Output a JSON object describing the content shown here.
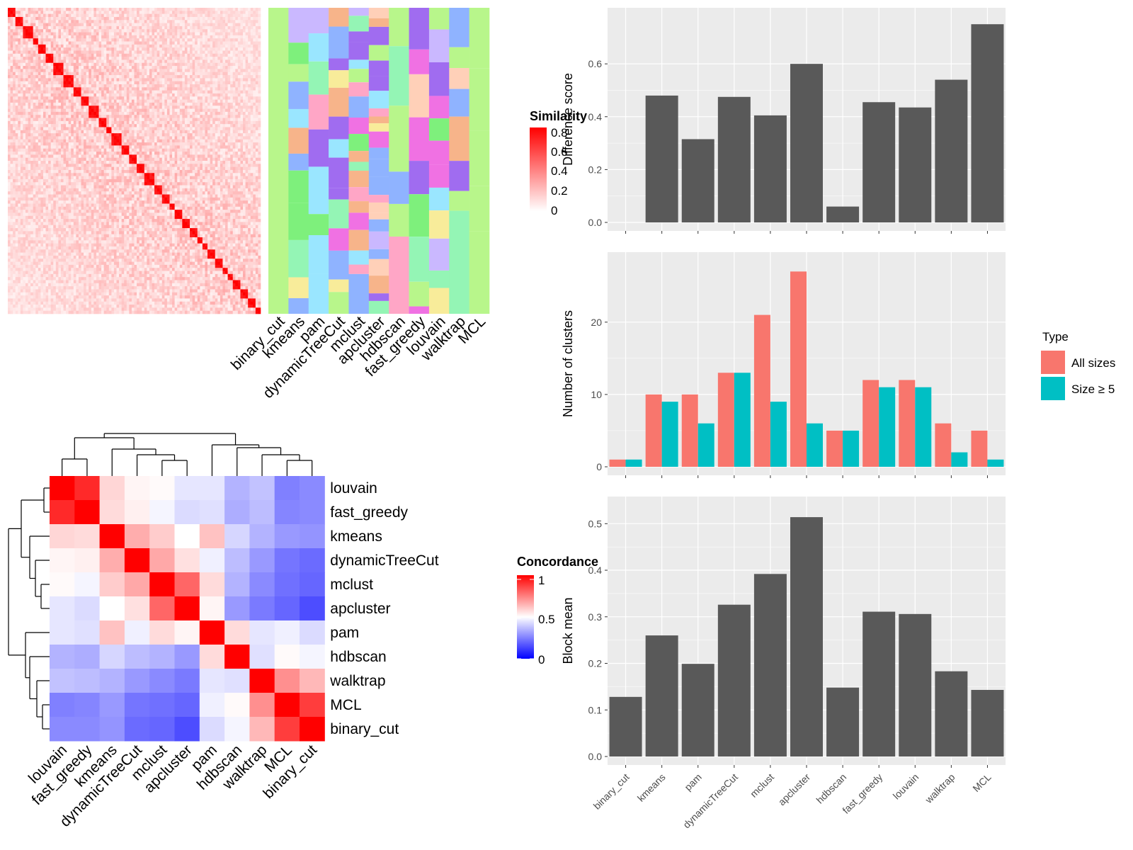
{
  "colors": {
    "bar": "#595959",
    "panel_bg": "#ebebeb",
    "all_sizes": "#f8766d",
    "size_ge_5": "#00bfc4",
    "heat_high": "#ff0000",
    "heat_mid": "#ffffff",
    "heat_low": "#0000ff"
  },
  "chart_data": [
    {
      "id": "difference-score",
      "type": "bar",
      "categories": [
        "binary_cut",
        "kmeans",
        "pam",
        "dynamicTreeCut",
        "mclust",
        "apcluster",
        "hdbscan",
        "fast_greedy",
        "louvain",
        "walktrap",
        "MCL"
      ],
      "values": [
        0.0,
        0.48,
        0.315,
        0.475,
        0.405,
        0.6,
        0.06,
        0.455,
        0.435,
        0.54,
        0.75
      ],
      "ylabel": "Difference score",
      "yticks": [
        "0.0",
        "0.2",
        "0.4",
        "0.6"
      ],
      "ylim": [
        0,
        0.78
      ]
    },
    {
      "id": "number-of-clusters",
      "type": "bar",
      "categories": [
        "binary_cut",
        "kmeans",
        "pam",
        "dynamicTreeCut",
        "mclust",
        "apcluster",
        "hdbscan",
        "fast_greedy",
        "louvain",
        "walktrap",
        "MCL"
      ],
      "series": [
        {
          "name": "All sizes",
          "values": [
            1,
            10,
            10,
            13,
            21,
            27,
            5,
            12,
            12,
            6,
            5
          ]
        },
        {
          "name": "Size ≥ 5",
          "values": [
            1,
            9,
            6,
            13,
            9,
            6,
            5,
            11,
            11,
            2,
            1
          ]
        }
      ],
      "ylabel": "Number of clusters",
      "yticks": [
        "0",
        "10",
        "20"
      ],
      "ylim": [
        0,
        28.5
      ],
      "legend": {
        "title": "Type",
        "position": "right"
      }
    },
    {
      "id": "block-mean",
      "type": "bar",
      "categories": [
        "binary_cut",
        "kmeans",
        "pam",
        "dynamicTreeCut",
        "mclust",
        "apcluster",
        "hdbscan",
        "fast_greedy",
        "louvain",
        "walktrap",
        "MCL"
      ],
      "values": [
        0.128,
        0.26,
        0.199,
        0.326,
        0.392,
        0.514,
        0.148,
        0.311,
        0.306,
        0.183,
        0.143
      ],
      "ylabel": "Block mean",
      "yticks": [
        "0.0",
        "0.1",
        "0.2",
        "0.3",
        "0.4",
        "0.5"
      ],
      "ylim": [
        0,
        0.54
      ]
    },
    {
      "id": "concordance-heatmap",
      "type": "heatmap",
      "labels": [
        "louvain",
        "fast_greedy",
        "kmeans",
        "dynamicTreeCut",
        "mclust",
        "apcluster",
        "pam",
        "hdbscan",
        "walktrap",
        "MCL",
        "binary_cut"
      ],
      "values": [
        [
          1.0,
          0.92,
          0.58,
          0.52,
          0.51,
          0.45,
          0.45,
          0.35,
          0.38,
          0.25,
          0.27
        ],
        [
          0.92,
          1.0,
          0.57,
          0.53,
          0.48,
          0.43,
          0.44,
          0.34,
          0.37,
          0.26,
          0.27
        ],
        [
          0.58,
          0.57,
          1.0,
          0.66,
          0.6,
          0.5,
          0.62,
          0.42,
          0.35,
          0.3,
          0.29
        ],
        [
          0.52,
          0.53,
          0.66,
          1.0,
          0.67,
          0.56,
          0.47,
          0.37,
          0.3,
          0.23,
          0.21
        ],
        [
          0.51,
          0.48,
          0.6,
          0.67,
          1.0,
          0.8,
          0.57,
          0.35,
          0.27,
          0.22,
          0.2
        ],
        [
          0.45,
          0.43,
          0.5,
          0.56,
          0.8,
          1.0,
          0.52,
          0.3,
          0.24,
          0.2,
          0.15
        ],
        [
          0.45,
          0.44,
          0.62,
          0.47,
          0.57,
          0.52,
          1.0,
          0.57,
          0.45,
          0.47,
          0.43
        ],
        [
          0.35,
          0.34,
          0.42,
          0.37,
          0.35,
          0.3,
          0.57,
          1.0,
          0.44,
          0.51,
          0.48
        ],
        [
          0.38,
          0.37,
          0.35,
          0.3,
          0.27,
          0.24,
          0.45,
          0.44,
          1.0,
          0.72,
          0.64
        ],
        [
          0.25,
          0.26,
          0.3,
          0.23,
          0.22,
          0.2,
          0.47,
          0.51,
          0.72,
          1.0,
          0.88
        ],
        [
          0.27,
          0.27,
          0.29,
          0.21,
          0.2,
          0.15,
          0.43,
          0.48,
          0.64,
          0.88,
          1.0
        ]
      ],
      "legend": {
        "title": "Concordance",
        "ticks": [
          "1",
          "0.5",
          "0"
        ]
      }
    },
    {
      "id": "similarity-heatmap",
      "type": "heatmap",
      "n_terms": 100,
      "legend": {
        "title": "Similarity",
        "ticks": [
          "0.8",
          "0.6",
          "0.4",
          "0.2",
          "0"
        ]
      }
    },
    {
      "id": "cluster-membership-annotation",
      "type": "heatmap",
      "methods": [
        "binary_cut",
        "kmeans",
        "pam",
        "dynamicTreeCut",
        "mclust",
        "apcluster",
        "hdbscan",
        "fast_greedy",
        "louvain",
        "walktrap",
        "MCL"
      ]
    }
  ]
}
